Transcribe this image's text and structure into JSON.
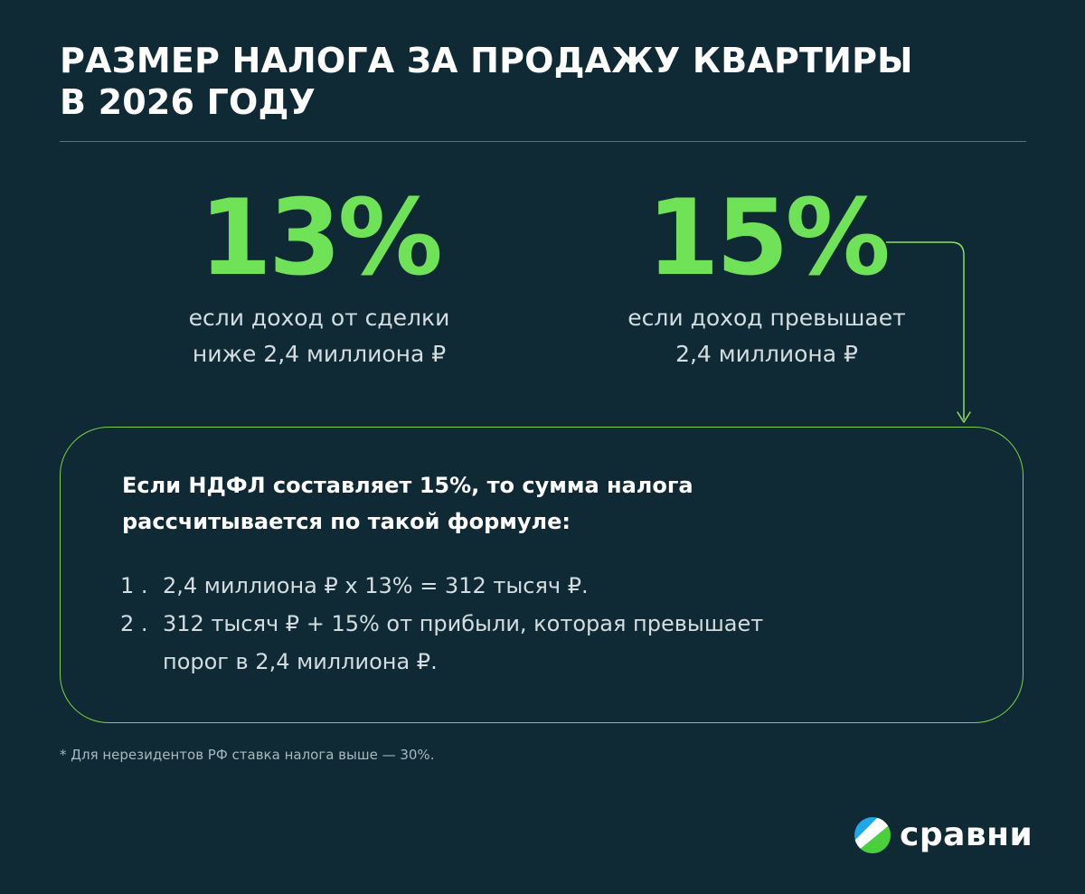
{
  "title": {
    "line1": "РАЗМЕР НАЛОГА ЗА ПРОДАЖУ КВАРТИРЫ",
    "line2": "В 2026 ГОДУ"
  },
  "rates": [
    {
      "value": "13%",
      "caption_line1": "если доход от сделки",
      "caption_line2": "ниже 2,4 миллиона ₽"
    },
    {
      "value": "15%",
      "caption_line1": "если доход превышает",
      "caption_line2": "2,4 миллиона ₽"
    }
  ],
  "formula": {
    "heading_line1": "Если НДФЛ составляет 15%, то сумма налога",
    "heading_line2": "рассчитывается по такой формуле:",
    "steps": [
      {
        "number": "1 .",
        "text_line1": "2,4 миллиона ₽ х 13% = 312 тысяч ₽.",
        "text_line2": ""
      },
      {
        "number": "2 .",
        "text_line1": "312 тысяч ₽ + 15% от прибыли, которая превышает",
        "text_line2": "порог в 2,4 миллиона ₽."
      }
    ]
  },
  "footnote": "* Для нерезидентов РФ ставка налога выше — 30%.",
  "brand": {
    "name": "сравни",
    "logo_icon": "sravni-logo-icon"
  },
  "colors": {
    "background": "#0f2a35",
    "accent": "#6fe257",
    "border": "#7fd24a",
    "text": "#d4dde0"
  }
}
